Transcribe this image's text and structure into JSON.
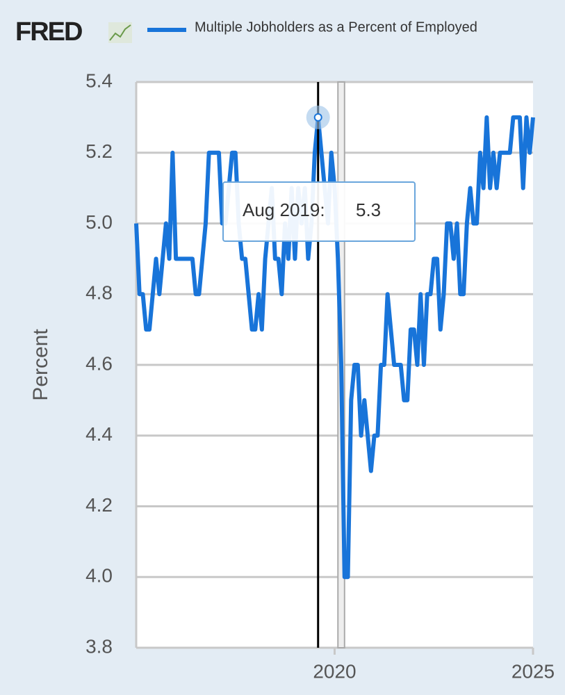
{
  "logo": "FRED",
  "chart_data": {
    "type": "line",
    "y_label": "Percent",
    "x": [
      "2015-01",
      "2015-02",
      "2015-03",
      "2015-04",
      "2015-05",
      "2015-06",
      "2015-07",
      "2015-08",
      "2015-09",
      "2015-10",
      "2015-11",
      "2015-12",
      "2016-01",
      "2016-02",
      "2016-03",
      "2016-04",
      "2016-05",
      "2016-06",
      "2016-07",
      "2016-08",
      "2016-09",
      "2016-10",
      "2016-11",
      "2016-12",
      "2017-01",
      "2017-02",
      "2017-03",
      "2017-04",
      "2017-05",
      "2017-06",
      "2017-07",
      "2017-08",
      "2017-09",
      "2017-10",
      "2017-11",
      "2017-12",
      "2018-01",
      "2018-02",
      "2018-03",
      "2018-04",
      "2018-05",
      "2018-06",
      "2018-07",
      "2018-08",
      "2018-09",
      "2018-10",
      "2018-11",
      "2018-12",
      "2019-01",
      "2019-02",
      "2019-03",
      "2019-04",
      "2019-05",
      "2019-06",
      "2019-07",
      "2019-08",
      "2019-09",
      "2019-10",
      "2019-11",
      "2019-12",
      "2020-01",
      "2020-02",
      "2020-03",
      "2020-04",
      "2020-05",
      "2020-06",
      "2020-07",
      "2020-08",
      "2020-09",
      "2020-10",
      "2020-11",
      "2020-12",
      "2021-01",
      "2021-02",
      "2021-03",
      "2021-04",
      "2021-05",
      "2021-06",
      "2021-07",
      "2021-08",
      "2021-09",
      "2021-10",
      "2021-11",
      "2021-12",
      "2022-01",
      "2022-02",
      "2022-03",
      "2022-04",
      "2022-05",
      "2022-06",
      "2022-07",
      "2022-08",
      "2022-09",
      "2022-10",
      "2022-11",
      "2022-12",
      "2023-01",
      "2023-02",
      "2023-03",
      "2023-04",
      "2023-05",
      "2023-06",
      "2023-07",
      "2023-08",
      "2023-09",
      "2023-10",
      "2023-11",
      "2023-12",
      "2024-01",
      "2024-02",
      "2024-03",
      "2024-04",
      "2024-05",
      "2024-06",
      "2024-07",
      "2024-08",
      "2024-09",
      "2024-10",
      "2024-11",
      "2024-12",
      "2025-01"
    ],
    "series": [
      {
        "name": "Multiple Jobholders as a Percent of Employed",
        "color": "#1874d9",
        "values": [
          5.0,
          4.8,
          4.8,
          4.7,
          4.7,
          4.8,
          4.9,
          4.8,
          4.9,
          5.0,
          4.9,
          5.2,
          4.9,
          4.9,
          4.9,
          4.9,
          4.9,
          4.9,
          4.8,
          4.8,
          4.9,
          5.0,
          5.2,
          5.2,
          5.2,
          5.2,
          5.0,
          5.0,
          5.1,
          5.2,
          5.2,
          5.0,
          4.9,
          4.9,
          4.8,
          4.7,
          4.7,
          4.8,
          4.7,
          4.9,
          5.0,
          5.1,
          4.9,
          4.9,
          4.8,
          5.0,
          4.9,
          5.1,
          4.9,
          5.1,
          5.0,
          5.1,
          4.9,
          5.0,
          5.2,
          5.3,
          5.2,
          5.1,
          5.0,
          5.2,
          5.1,
          4.9,
          4.6,
          4.0,
          4.0,
          4.5,
          4.6,
          4.6,
          4.4,
          4.5,
          4.4,
          4.3,
          4.4,
          4.4,
          4.6,
          4.6,
          4.8,
          4.7,
          4.6,
          4.6,
          4.6,
          4.5,
          4.5,
          4.7,
          4.7,
          4.6,
          4.8,
          4.6,
          4.8,
          4.8,
          4.9,
          4.9,
          4.7,
          4.8,
          5.0,
          5.0,
          4.9,
          5.0,
          4.8,
          4.8,
          5.0,
          5.1,
          5.0,
          5.0,
          5.2,
          5.1,
          5.3,
          5.1,
          5.2,
          5.1,
          5.2,
          5.2,
          5.2,
          5.2,
          5.3,
          5.3,
          5.3,
          5.1,
          5.3,
          5.2,
          5.3
        ]
      }
    ],
    "xlim": [
      "2015-01",
      "2025-01"
    ],
    "xticks": [
      {
        "value": "2020-01",
        "label": "2020"
      },
      {
        "value": "2025-01",
        "label": "2025"
      }
    ],
    "ylim": [
      3.8,
      5.4
    ],
    "yticks": [
      3.8,
      {
        "value": 4,
        "label": "4.0"
      },
      4.2,
      4.4,
      4.6,
      4.8,
      {
        "value": 5,
        "label": "5.0"
      },
      5.2,
      5.4
    ],
    "grid": true,
    "recessions": [
      {
        "start": "2020-02",
        "end": "2020-04"
      }
    ],
    "tooltip_label": "Aug 2019:",
    "tooltip_index": 55
  }
}
